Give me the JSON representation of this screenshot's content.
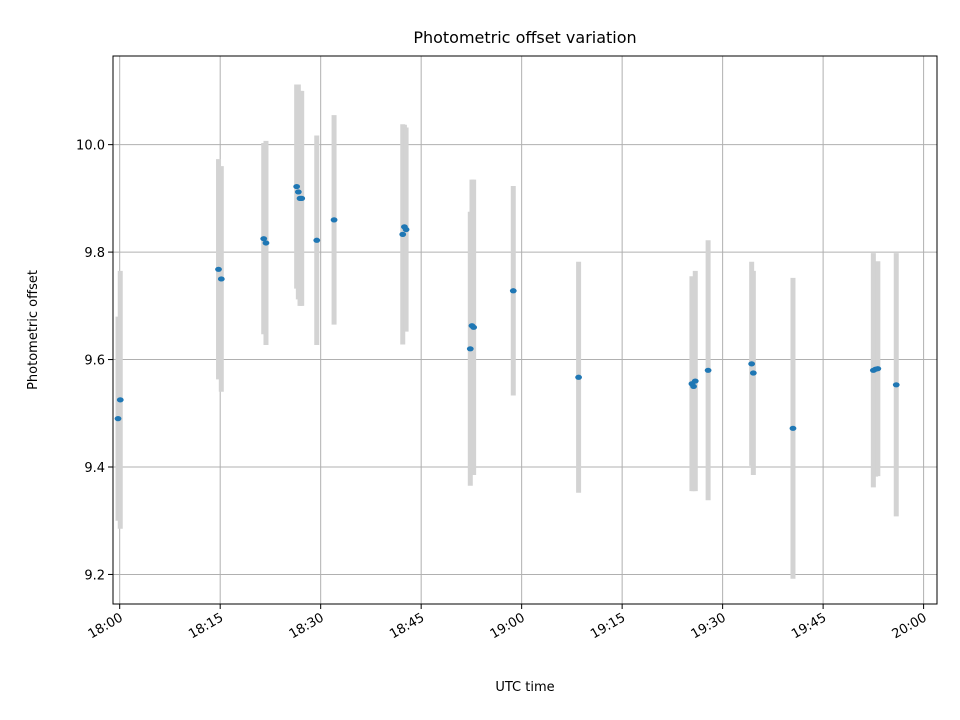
{
  "chart_data": {
    "type": "scatter",
    "title": "Photometric offset variation",
    "xlabel": "UTC time",
    "ylabel": "Photometric offset",
    "xlim": [
      "17:59",
      "20:02"
    ],
    "ylim": [
      9.145,
      10.165
    ],
    "x_ticks": [
      "18:00",
      "18:15",
      "18:30",
      "18:45",
      "19:00",
      "19:15",
      "19:30",
      "19:45",
      "20:00"
    ],
    "y_ticks": [
      "9.2",
      "9.4",
      "9.6",
      "9.8",
      "10.0"
    ],
    "grid": true,
    "marker_color": "#1f77b4",
    "errorbar_color": "#d3d3d3",
    "points": [
      {
        "x": "17:59:45",
        "y": 9.49,
        "yerr": 0.19
      },
      {
        "x": "18:00:05",
        "y": 9.525,
        "yerr": 0.24
      },
      {
        "x": "18:14:45",
        "y": 9.768,
        "yerr": 0.205
      },
      {
        "x": "18:15:10",
        "y": 9.75,
        "yerr": 0.21
      },
      {
        "x": "18:21:30",
        "y": 9.825,
        "yerr": 0.178
      },
      {
        "x": "18:21:50",
        "y": 9.817,
        "yerr": 0.19
      },
      {
        "x": "18:26:25",
        "y": 9.922,
        "yerr": 0.19
      },
      {
        "x": "18:26:40",
        "y": 9.912,
        "yerr": 0.2
      },
      {
        "x": "18:26:55",
        "y": 9.9,
        "yerr": 0.2
      },
      {
        "x": "18:27:10",
        "y": 9.9,
        "yerr": 0.2
      },
      {
        "x": "18:29:25",
        "y": 9.822,
        "yerr": 0.195
      },
      {
        "x": "18:32:00",
        "y": 9.86,
        "yerr": 0.195
      },
      {
        "x": "18:42:15",
        "y": 9.833,
        "yerr": 0.205
      },
      {
        "x": "18:42:30",
        "y": 9.847,
        "yerr": 0.19
      },
      {
        "x": "18:42:45",
        "y": 9.842,
        "yerr": 0.19
      },
      {
        "x": "18:52:20",
        "y": 9.62,
        "yerr": 0.255
      },
      {
        "x": "18:52:35",
        "y": 9.663,
        "yerr": 0.272
      },
      {
        "x": "18:52:50",
        "y": 9.66,
        "yerr": 0.275
      },
      {
        "x": "18:58:45",
        "y": 9.728,
        "yerr": 0.195
      },
      {
        "x": "19:08:30",
        "y": 9.567,
        "yerr": 0.215
      },
      {
        "x": "19:25:25",
        "y": 9.555,
        "yerr": 0.2
      },
      {
        "x": "19:25:40",
        "y": 9.55,
        "yerr": 0.195
      },
      {
        "x": "19:25:55",
        "y": 9.56,
        "yerr": 0.205
      },
      {
        "x": "19:27:50",
        "y": 9.58,
        "yerr": 0.242
      },
      {
        "x": "19:34:20",
        "y": 9.592,
        "yerr": 0.19
      },
      {
        "x": "19:34:35",
        "y": 9.575,
        "yerr": 0.19
      },
      {
        "x": "19:40:30",
        "y": 9.472,
        "yerr": 0.28
      },
      {
        "x": "19:52:30",
        "y": 9.58,
        "yerr": 0.218
      },
      {
        "x": "19:52:50",
        "y": 9.582,
        "yerr": 0.2
      },
      {
        "x": "19:53:10",
        "y": 9.583,
        "yerr": 0.2
      },
      {
        "x": "19:55:55",
        "y": 9.553,
        "yerr": 0.245
      }
    ]
  }
}
